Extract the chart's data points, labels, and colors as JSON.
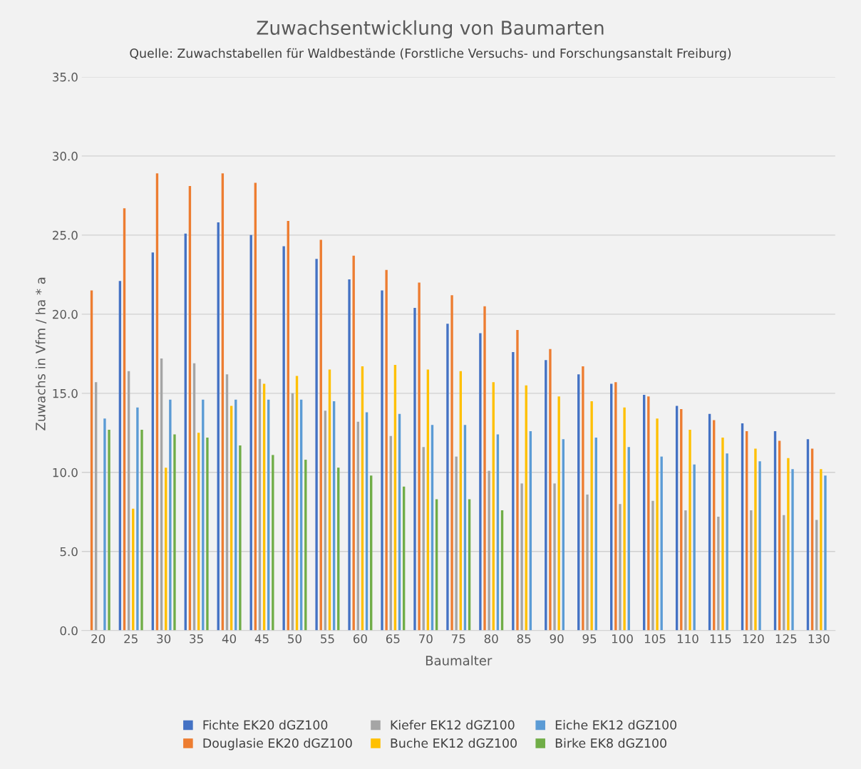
{
  "chart_data": {
    "type": "bar",
    "title": "Zuwachsentwicklung von Baumarten",
    "subtitle": "Quelle: Zuwachstabellen für Waldbestände (Forstliche Versuchs- und Forschungsanstalt Freiburg)",
    "xlabel": "Baumalter",
    "ylabel": "Zuwachs in Vfm / ha * a",
    "categories": [
      "20",
      "25",
      "30",
      "35",
      "40",
      "45",
      "50",
      "55",
      "60",
      "65",
      "70",
      "75",
      "80",
      "85",
      "90",
      "95",
      "100",
      "105",
      "110",
      "115",
      "120",
      "125",
      "130"
    ],
    "series": [
      {
        "name": "Fichte EK20 dGZ100",
        "color": "#4472c4",
        "values": [
          null,
          22.1,
          23.9,
          25.1,
          25.8,
          25.0,
          24.3,
          23.5,
          22.2,
          21.5,
          20.4,
          19.4,
          18.8,
          17.6,
          17.1,
          16.2,
          15.6,
          14.9,
          14.2,
          13.7,
          13.1,
          12.6,
          12.1
        ]
      },
      {
        "name": "Douglasie EK20 dGZ100",
        "color": "#ed7d31",
        "values": [
          21.5,
          26.7,
          28.9,
          28.1,
          28.9,
          28.3,
          25.9,
          24.7,
          23.7,
          22.8,
          22.0,
          21.2,
          20.5,
          19.0,
          17.8,
          16.7,
          15.7,
          14.8,
          14.0,
          13.3,
          12.6,
          12.0,
          11.5
        ]
      },
      {
        "name": "Kiefer EK12 dGZ100",
        "color": "#a5a5a5",
        "values": [
          15.7,
          16.4,
          17.2,
          16.9,
          16.2,
          15.9,
          15.0,
          13.9,
          13.2,
          12.3,
          11.6,
          11.0,
          10.1,
          9.3,
          9.3,
          8.6,
          8.0,
          8.2,
          7.6,
          7.2,
          7.6,
          7.3,
          7.0
        ]
      },
      {
        "name": "Buche EK12 dGZ100",
        "color": "#ffc000",
        "values": [
          null,
          7.7,
          10.3,
          12.5,
          14.2,
          15.6,
          16.1,
          16.5,
          16.7,
          16.8,
          16.5,
          16.4,
          15.7,
          15.5,
          14.8,
          14.5,
          14.1,
          13.4,
          12.7,
          12.2,
          11.5,
          10.9,
          10.2
        ]
      },
      {
        "name": "Eiche EK12 dGZ100",
        "color": "#5b9bd5",
        "values": [
          13.4,
          14.1,
          14.6,
          14.6,
          14.6,
          14.6,
          14.6,
          14.5,
          13.8,
          13.7,
          13.0,
          13.0,
          12.4,
          12.6,
          12.1,
          12.2,
          11.6,
          11.0,
          10.5,
          11.2,
          10.7,
          10.2,
          9.8
        ]
      },
      {
        "name": "Birke EK8 dGZ100",
        "color": "#70ad47",
        "values": [
          12.7,
          12.7,
          12.4,
          12.2,
          11.7,
          11.1,
          10.8,
          10.3,
          9.8,
          9.1,
          8.3,
          8.3,
          7.6,
          null,
          null,
          null,
          null,
          null,
          null,
          null,
          null,
          null,
          null
        ]
      }
    ],
    "ylim": [
      0,
      35
    ],
    "yticks": [
      {
        "value": 0,
        "label": "0.0"
      },
      {
        "value": 5,
        "label": "5.0"
      },
      {
        "value": 10,
        "label": "10.0"
      },
      {
        "value": 15,
        "label": "15.0"
      },
      {
        "value": 20,
        "label": "20.0"
      },
      {
        "value": 25,
        "label": "25.0"
      },
      {
        "value": 30,
        "label": "30.0"
      },
      {
        "value": 35,
        "label": "35.0"
      }
    ],
    "grid": "y",
    "legend": "bottom"
  }
}
